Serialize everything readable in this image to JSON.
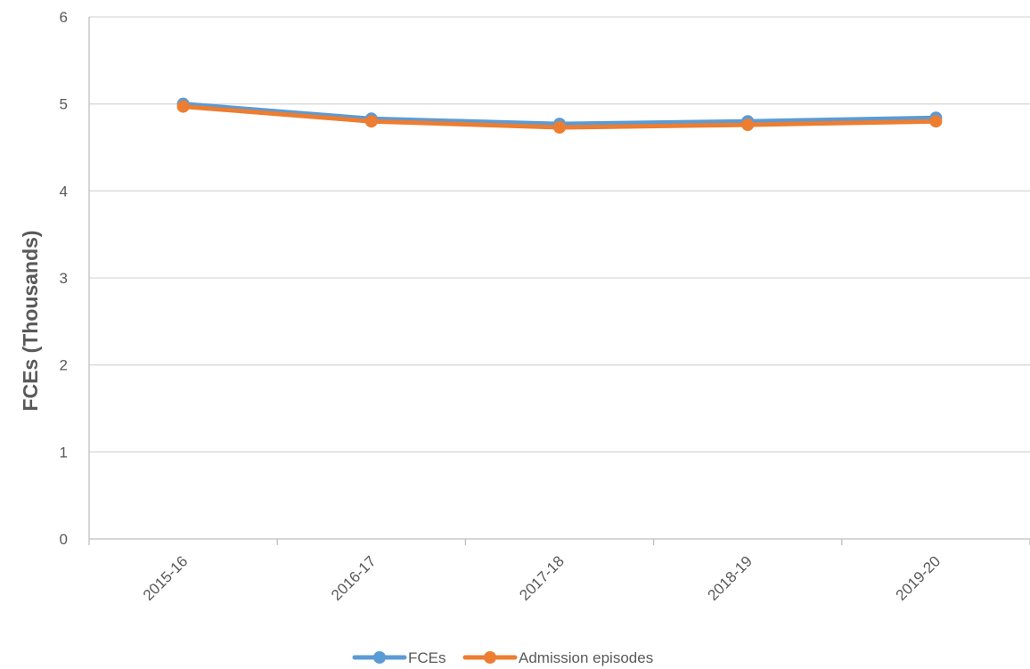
{
  "chart_data": {
    "type": "line",
    "title": "",
    "xlabel": "",
    "ylabel": "FCEs (Thousands)",
    "categories": [
      "2015-16",
      "2016-17",
      "2017-18",
      "2018-19",
      "2019-20"
    ],
    "ylim": [
      0,
      6
    ],
    "yticks": [
      "0",
      "1",
      "2",
      "3",
      "4",
      "5",
      "6"
    ],
    "grid": "horizontal",
    "legend_position": "bottom",
    "series": [
      {
        "name": "FCEs",
        "color": "#5B9BD5",
        "values": [
          5.0,
          4.83,
          4.77,
          4.8,
          4.84
        ]
      },
      {
        "name": "Admission episodes",
        "color": "#ED7D31",
        "values": [
          4.97,
          4.8,
          4.73,
          4.76,
          4.8
        ]
      }
    ]
  }
}
